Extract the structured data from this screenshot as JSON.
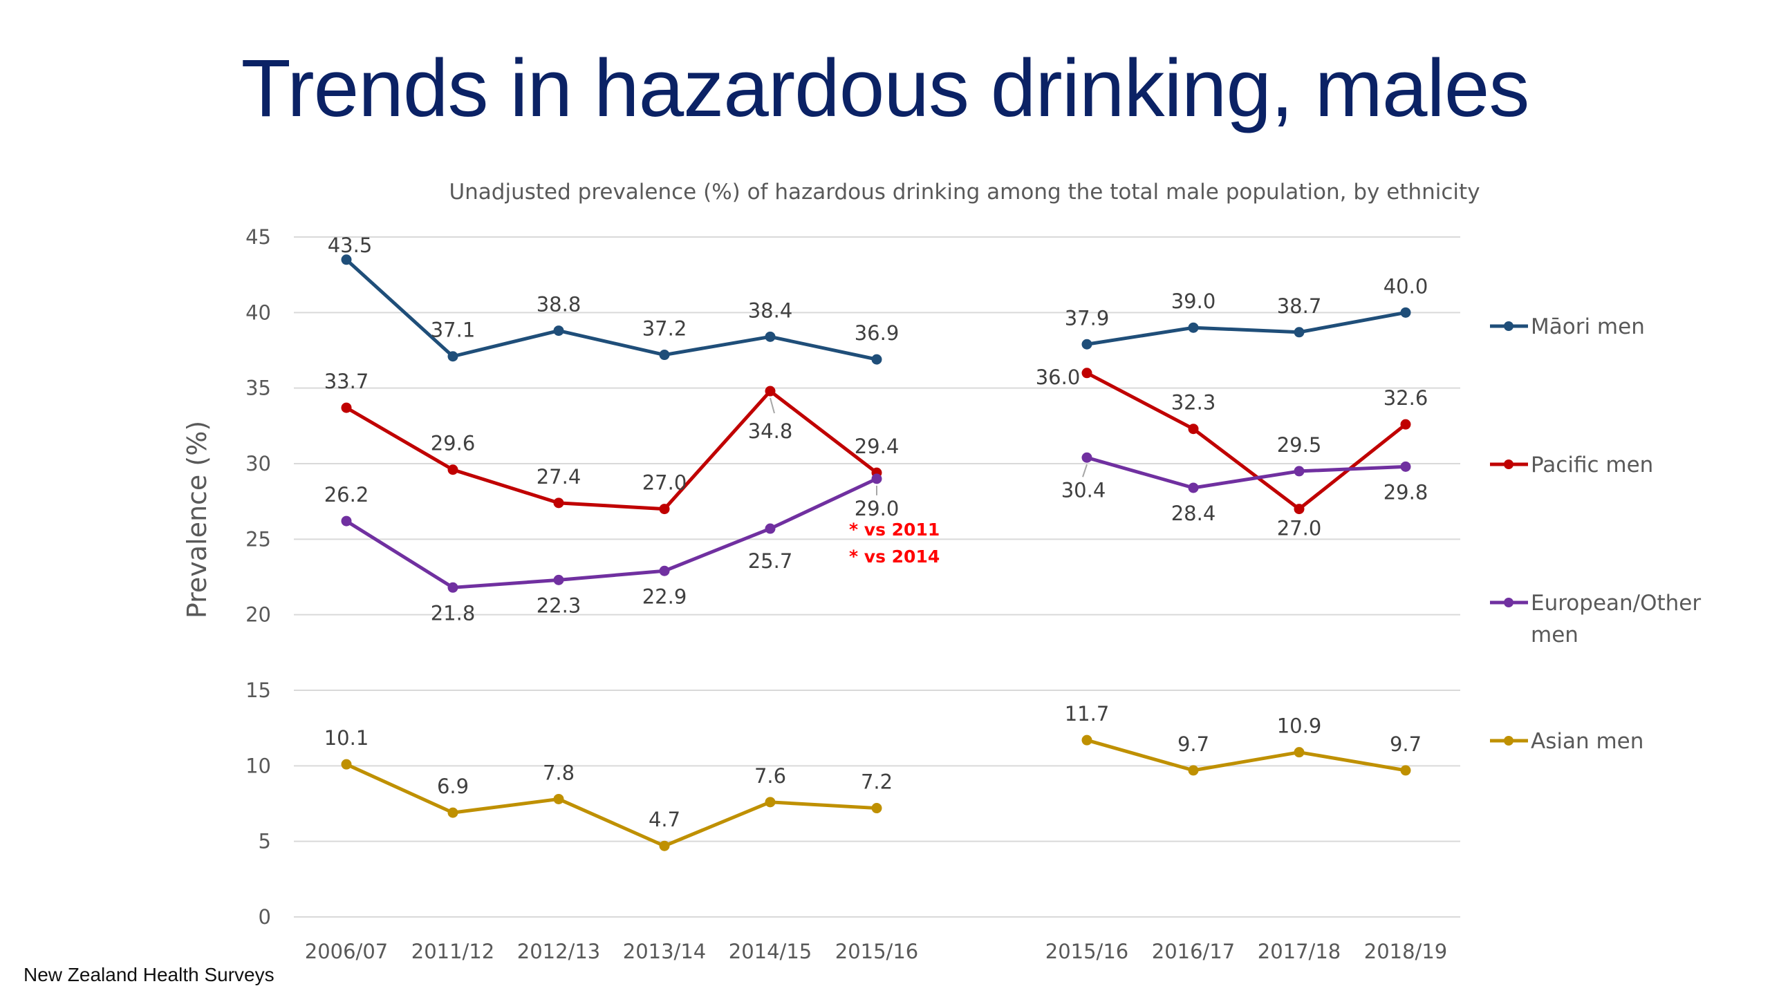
{
  "title": "Trends in hazardous drinking, males",
  "source": "New Zealand Health Surveys",
  "chart_data": {
    "type": "line",
    "subtitle": "Unadjusted prevalence (%) of hazardous drinking among the total male population, by ethnicity",
    "ylabel": "Prevalence (%)",
    "ylim": [
      0,
      45
    ],
    "yticks": [
      "0",
      "5",
      "10",
      "15",
      "20",
      "25",
      "30",
      "35",
      "40",
      "45"
    ],
    "grid": true,
    "legend_position": "right",
    "groups": [
      {
        "categories": [
          "2006/07",
          "2011/12",
          "2012/13",
          "2013/14",
          "2014/15",
          "2015/16"
        ]
      },
      {
        "categories": [
          "2015/16",
          "2016/17",
          "2017/18",
          "2018/19"
        ]
      }
    ],
    "series": [
      {
        "name": "Māori men",
        "color": "#1f4e79",
        "values": [
          [
            43.5,
            37.1,
            38.8,
            37.2,
            38.4,
            36.9
          ],
          [
            37.9,
            39.0,
            38.7,
            40.0
          ]
        ],
        "labels": [
          [
            "43.5",
            "37.1",
            "38.8",
            "37.2",
            "38.4",
            "36.9"
          ],
          [
            "37.9",
            "39.0",
            "38.7",
            "40.0"
          ]
        ]
      },
      {
        "name": "Pacific men",
        "color": "#c00000",
        "values": [
          [
            33.7,
            29.6,
            27.4,
            27.0,
            34.8,
            29.4
          ],
          [
            36.0,
            32.3,
            27.0,
            32.6
          ]
        ],
        "labels": [
          [
            "33.7",
            "29.6",
            "27.4",
            "27.0",
            "34.8",
            "29.4"
          ],
          [
            "36.0",
            "32.3",
            "27.0",
            "32.6"
          ]
        ]
      },
      {
        "name": "European/Other men",
        "color": "#7030a0",
        "values": [
          [
            26.2,
            21.8,
            22.3,
            22.9,
            25.7,
            29.0
          ],
          [
            30.4,
            28.4,
            29.5,
            29.8
          ]
        ],
        "labels": [
          [
            "26.2",
            "21.8",
            "22.3",
            "22.9",
            "25.7",
            "29.0"
          ],
          [
            "30.4",
            "28.4",
            "29.5",
            "29.8"
          ]
        ]
      },
      {
        "name": "Asian men",
        "color": "#bf9000",
        "values": [
          [
            10.1,
            6.9,
            7.8,
            4.7,
            7.6,
            7.2
          ],
          [
            11.7,
            9.7,
            10.9,
            9.7
          ]
        ],
        "labels": [
          [
            "10.1",
            "6.9",
            "7.8",
            "4.7",
            "7.6",
            "7.2"
          ],
          [
            "11.7",
            "9.7",
            "10.9",
            "9.7"
          ]
        ]
      }
    ],
    "annotations": [
      "* vs 2011",
      "* vs 2014"
    ]
  }
}
